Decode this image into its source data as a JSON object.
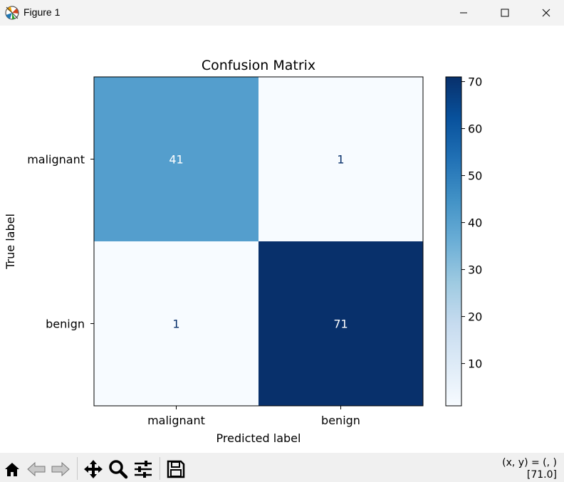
{
  "window": {
    "title": "Figure 1",
    "icon": "matplotlib-icon",
    "controls": [
      "minimize-icon",
      "maximize-icon",
      "close-icon"
    ]
  },
  "toolbar": {
    "tools": [
      "home-icon",
      "back-arrow-icon",
      "forward-arrow-icon",
      "pan-move-icon",
      "zoom-magnifier-icon",
      "configure-subplots-icon",
      "save-floppy-icon"
    ],
    "coords_text": "(x, y) = (, )",
    "value_text": "[71.0]"
  },
  "chart_data": {
    "type": "heatmap",
    "title": "Confusion Matrix",
    "xlabel": "Predicted label",
    "ylabel": "True label",
    "x_categories": [
      "malignant",
      "benign"
    ],
    "y_categories": [
      "malignant",
      "benign"
    ],
    "values": [
      [
        41,
        1
      ],
      [
        1,
        71
      ]
    ],
    "colormap": "Blues",
    "colorbar": {
      "min": 1,
      "max": 71,
      "ticks": [
        10,
        20,
        30,
        40,
        50,
        60,
        70
      ]
    },
    "text_colors": {
      "light": "#ffffff",
      "dark": "#08306b"
    }
  }
}
